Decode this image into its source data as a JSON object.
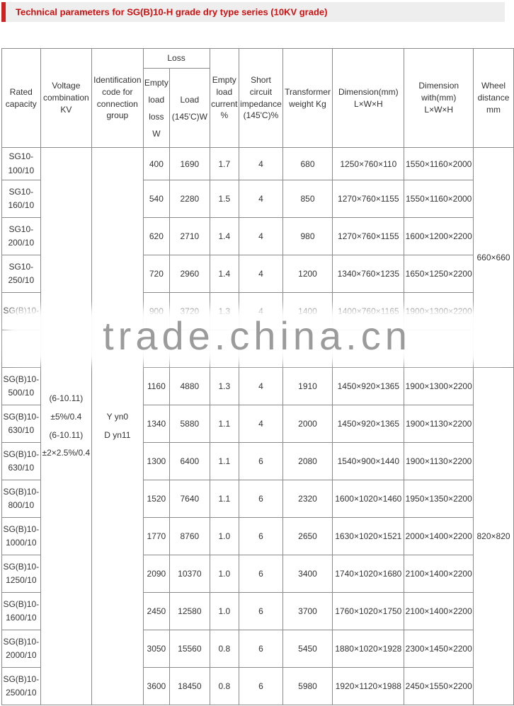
{
  "title": {
    "text": "Technical parameters for SG(B)10-H grade dry type series (10KV grade)"
  },
  "watermark": {
    "text": "trade.china.cn"
  },
  "table": {
    "headers": {
      "rated_capacity": "Rated\ncapacity",
      "voltage_combination": "Voltage\ncombination\nKV",
      "identification_code": "Identification\ncode for\nconnection\ngroup",
      "loss": "Loss",
      "empty_load_loss": "Empty\nload\nloss\nW",
      "load": "Load\n(145'C)W",
      "empty_load_current": "Empty\nload\ncurrent\n%",
      "short_circuit_impedance": "Short\ncircuit\nimpedance\n(145'C)%",
      "transformer_weight": "Transformer\nweight Kg",
      "dimension": "Dimension(mm)\nL×W×H",
      "dimension_with": "Dimension\nwith(mm)\nL×W×H",
      "wheel_distance": "Wheel\ndistance\nmm"
    },
    "merged": {
      "voltage_combination": "(6-10.11)\n±5%/0.4\n(6-10.11)\n±2×2.5%/0.4",
      "identification_code": "Y yn0\nD yn11",
      "wheel_distances": [
        "660×660",
        "820×820"
      ]
    },
    "rows": [
      {
        "capacity": "SG10-\n100/10",
        "empty_loss": "400",
        "load": "1690",
        "current": "1.7",
        "impedance": "4",
        "weight": "680",
        "dim": "1250×760×110",
        "dim_with": "1550×1160×2000"
      },
      {
        "capacity": "SG10-\n160/10",
        "empty_loss": "540",
        "load": "2280",
        "current": "1.5",
        "impedance": "4",
        "weight": "850",
        "dim": "1270×760×1155",
        "dim_with": "1550×1160×2000"
      },
      {
        "capacity": "SG10-\n200/10",
        "empty_loss": "620",
        "load": "2710",
        "current": "1.4",
        "impedance": "4",
        "weight": "980",
        "dim": "1270×760×1155",
        "dim_with": "1600×1200×2200"
      },
      {
        "capacity": "SG10-\n250/10",
        "empty_loss": "720",
        "load": "2960",
        "current": "1.4",
        "impedance": "4",
        "weight": "1200",
        "dim": "1340×760×1235",
        "dim_with": "1650×1250×2200"
      },
      {
        "capacity": "SG(B)10-",
        "empty_loss": "900",
        "load": "3720",
        "current": "1.3",
        "impedance": "4",
        "weight": "1400",
        "dim": "1400×760×1165",
        "dim_with": "1900×1300×2200"
      },
      {
        "capacity": "",
        "empty_loss": "",
        "load": "",
        "current": "",
        "impedance": "",
        "weight": "",
        "dim": "",
        "dim_with": ""
      },
      {
        "capacity": "SG(B)10-\n500/10",
        "empty_loss": "1160",
        "load": "4880",
        "current": "1.3",
        "impedance": "4",
        "weight": "1910",
        "dim": "1450×920×1365",
        "dim_with": "1900×1300×2200"
      },
      {
        "capacity": "SG(B)10-\n630/10",
        "empty_loss": "1340",
        "load": "5880",
        "current": "1.1",
        "impedance": "4",
        "weight": "2000",
        "dim": "1450×920×1365",
        "dim_with": "1900×1130×2200"
      },
      {
        "capacity": "SG(B)10-\n630/10",
        "empty_loss": "1300",
        "load": "6400",
        "current": "1.1",
        "impedance": "6",
        "weight": "2080",
        "dim": "1540×900×1440",
        "dim_with": "1900×1130×2200"
      },
      {
        "capacity": "SG(B)10-\n800/10",
        "empty_loss": "1520",
        "load": "7640",
        "current": "1.1",
        "impedance": "6",
        "weight": "2320",
        "dim": "1600×1020×1460",
        "dim_with": "1950×1350×2200"
      },
      {
        "capacity": "SG(B)10-\n1000/10",
        "empty_loss": "1770",
        "load": "8760",
        "current": "1.0",
        "impedance": "6",
        "weight": "2650",
        "dim": "1630×1020×1521",
        "dim_with": "2000×1400×2200"
      },
      {
        "capacity": "SG(B)10-\n1250/10",
        "empty_loss": "2090",
        "load": "10370",
        "current": "1.0",
        "impedance": "6",
        "weight": "3400",
        "dim": "1740×1020×1680",
        "dim_with": "2100×1400×2200"
      },
      {
        "capacity": "SG(B)10-\n1600/10",
        "empty_loss": "2450",
        "load": "12580",
        "current": "1.0",
        "impedance": "6",
        "weight": "3700",
        "dim": "1760×1020×1750",
        "dim_with": "2100×1400×2200"
      },
      {
        "capacity": "SG(B)10-\n2000/10",
        "empty_loss": "3050",
        "load": "15560",
        "current": "0.8",
        "impedance": "6",
        "weight": "5450",
        "dim": "1880×1020×1928",
        "dim_with": "2300×1450×2200"
      },
      {
        "capacity": "SG(B)10-\n2500/10",
        "empty_loss": "3600",
        "load": "18450",
        "current": "0.8",
        "impedance": "6",
        "weight": "5980",
        "dim": "1920×1120×1988",
        "dim_with": "2450×1550×2200"
      }
    ]
  }
}
